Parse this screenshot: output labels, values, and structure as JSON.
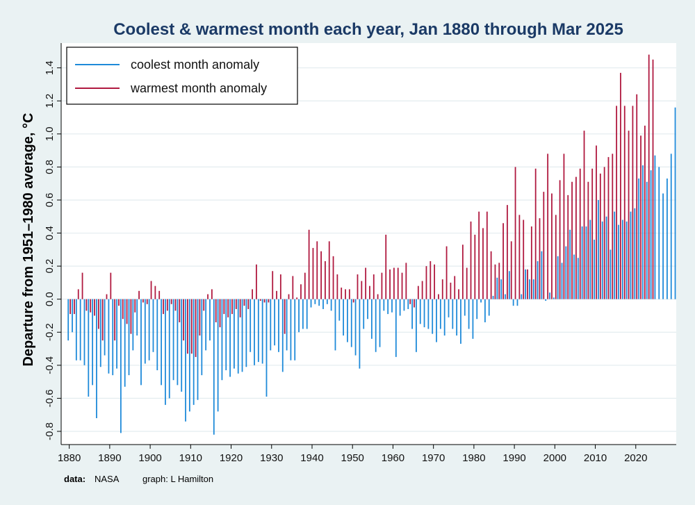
{
  "chart_data": {
    "type": "bar",
    "title": "Coolest & warmest month each year, Jan 1880 through Mar 2025",
    "ylabel": "Departure from 1951–1980 average, °C",
    "xlabel": "",
    "xlim": [
      1878,
      2030
    ],
    "ylim": [
      -0.88,
      1.55
    ],
    "x_ticks": [
      1880,
      1890,
      1900,
      1910,
      1920,
      1930,
      1940,
      1950,
      1960,
      1970,
      1980,
      1990,
      2000,
      2010,
      2020
    ],
    "y_ticks": [
      -0.8,
      -0.6,
      -0.4,
      -0.2,
      0.0,
      0.2,
      0.4,
      0.6,
      0.8,
      1.0,
      1.2,
      1.4
    ],
    "y_tick_labels": [
      "-0.8",
      "-0.6",
      "-0.4",
      "-0.2",
      "0.0",
      "0.2",
      "0.4",
      "0.6",
      "0.8",
      "1.0",
      "1.2",
      "1.4"
    ],
    "grid": true,
    "legend_position": "top-left",
    "start_year": 1880,
    "series": [
      {
        "name": "coolest month anomaly",
        "color": "#1e8ad9",
        "values": [
          -0.25,
          -0.2,
          -0.37,
          -0.37,
          -0.4,
          -0.59,
          -0.52,
          -0.72,
          -0.41,
          -0.34,
          -0.45,
          -0.46,
          -0.42,
          -0.81,
          -0.53,
          -0.46,
          -0.31,
          -0.22,
          -0.52,
          -0.39,
          -0.37,
          -0.32,
          -0.43,
          -0.52,
          -0.64,
          -0.6,
          -0.49,
          -0.52,
          -0.56,
          -0.74,
          -0.68,
          -0.64,
          -0.61,
          -0.46,
          -0.31,
          -0.25,
          -0.82,
          -0.68,
          -0.49,
          -0.43,
          -0.47,
          -0.42,
          -0.45,
          -0.44,
          -0.41,
          -0.32,
          -0.4,
          -0.38,
          -0.39,
          -0.59,
          -0.31,
          -0.28,
          -0.32,
          -0.44,
          -0.31,
          -0.37,
          -0.37,
          -0.2,
          -0.18,
          -0.18,
          -0.05,
          -0.03,
          -0.04,
          -0.06,
          -0.03,
          -0.07,
          -0.31,
          -0.13,
          -0.22,
          -0.26,
          -0.29,
          -0.34,
          -0.42,
          -0.18,
          -0.12,
          -0.24,
          -0.32,
          -0.29,
          -0.07,
          -0.09,
          -0.08,
          -0.35,
          -0.1,
          -0.07,
          -0.06,
          -0.18,
          -0.32,
          -0.15,
          -0.17,
          -0.18,
          -0.21,
          -0.26,
          -0.18,
          -0.22,
          -0.11,
          -0.18,
          -0.22,
          -0.27,
          -0.1,
          -0.18,
          -0.24,
          -0.12,
          -0.02,
          -0.14,
          -0.1,
          0.02,
          0.13,
          0.12,
          0.03,
          0.17,
          -0.04,
          -0.04,
          0.03,
          0.18,
          0.12,
          0.12,
          0.23,
          0.29,
          -0.01,
          0.04,
          0.01,
          0.26,
          0.22,
          0.32,
          0.42,
          0.27,
          0.25,
          0.44,
          0.44,
          0.48,
          0.36,
          0.6,
          0.47,
          0.5,
          0.3,
          0.53,
          0.45,
          0.48,
          0.47,
          0.53,
          0.55,
          0.73,
          0.81,
          0.71,
          0.78,
          0.87,
          0.8,
          0.64,
          0.73,
          0.88,
          1.16
        ]
      },
      {
        "name": "warmest month anomaly",
        "color": "#b0193f",
        "values": [
          -0.09,
          -0.09,
          0.06,
          0.16,
          -0.07,
          -0.08,
          -0.1,
          -0.18,
          -0.25,
          0.03,
          0.16,
          -0.25,
          -0.04,
          -0.12,
          -0.15,
          -0.21,
          -0.08,
          0.05,
          -0.02,
          -0.03,
          0.11,
          0.08,
          0.05,
          -0.09,
          -0.07,
          -0.03,
          -0.07,
          -0.14,
          -0.25,
          -0.33,
          -0.33,
          -0.35,
          -0.22,
          -0.07,
          0.03,
          0.06,
          -0.14,
          -0.17,
          -0.09,
          -0.11,
          -0.09,
          -0.06,
          -0.11,
          -0.04,
          -0.06,
          0.06,
          0.21,
          -0.01,
          -0.02,
          -0.02,
          0.17,
          0.05,
          0.15,
          -0.21,
          0.03,
          0.14,
          0.01,
          0.09,
          0.16,
          0.42,
          0.31,
          0.35,
          0.29,
          0.23,
          0.35,
          0.26,
          0.15,
          0.07,
          0.06,
          0.06,
          -0.02,
          0.15,
          0.11,
          0.19,
          0.08,
          0.15,
          0.03,
          0.16,
          0.39,
          0.18,
          0.19,
          0.19,
          0.16,
          0.22,
          -0.03,
          -0.05,
          0.08,
          0.11,
          0.2,
          0.23,
          0.21,
          0.03,
          0.12,
          0.32,
          0.1,
          0.14,
          0.06,
          0.33,
          0.19,
          0.47,
          0.39,
          0.53,
          0.43,
          0.53,
          0.29,
          0.21,
          0.22,
          0.46,
          0.57,
          0.35,
          0.8,
          0.51,
          0.48,
          0.18,
          0.44,
          0.79,
          0.49,
          0.65,
          0.88,
          0.64,
          0.51,
          0.72,
          0.88,
          0.63,
          0.71,
          0.74,
          0.79,
          1.02,
          0.71,
          0.79,
          0.93,
          0.76,
          0.8,
          0.86,
          0.88,
          1.17,
          1.37,
          1.17,
          1.02,
          1.17,
          1.24,
          0.99,
          1.05,
          1.48,
          1.45
        ]
      }
    ]
  },
  "footnote": {
    "data_label": "data:",
    "data_source": "NASA",
    "graph_credit": "graph: L Hamilton"
  }
}
